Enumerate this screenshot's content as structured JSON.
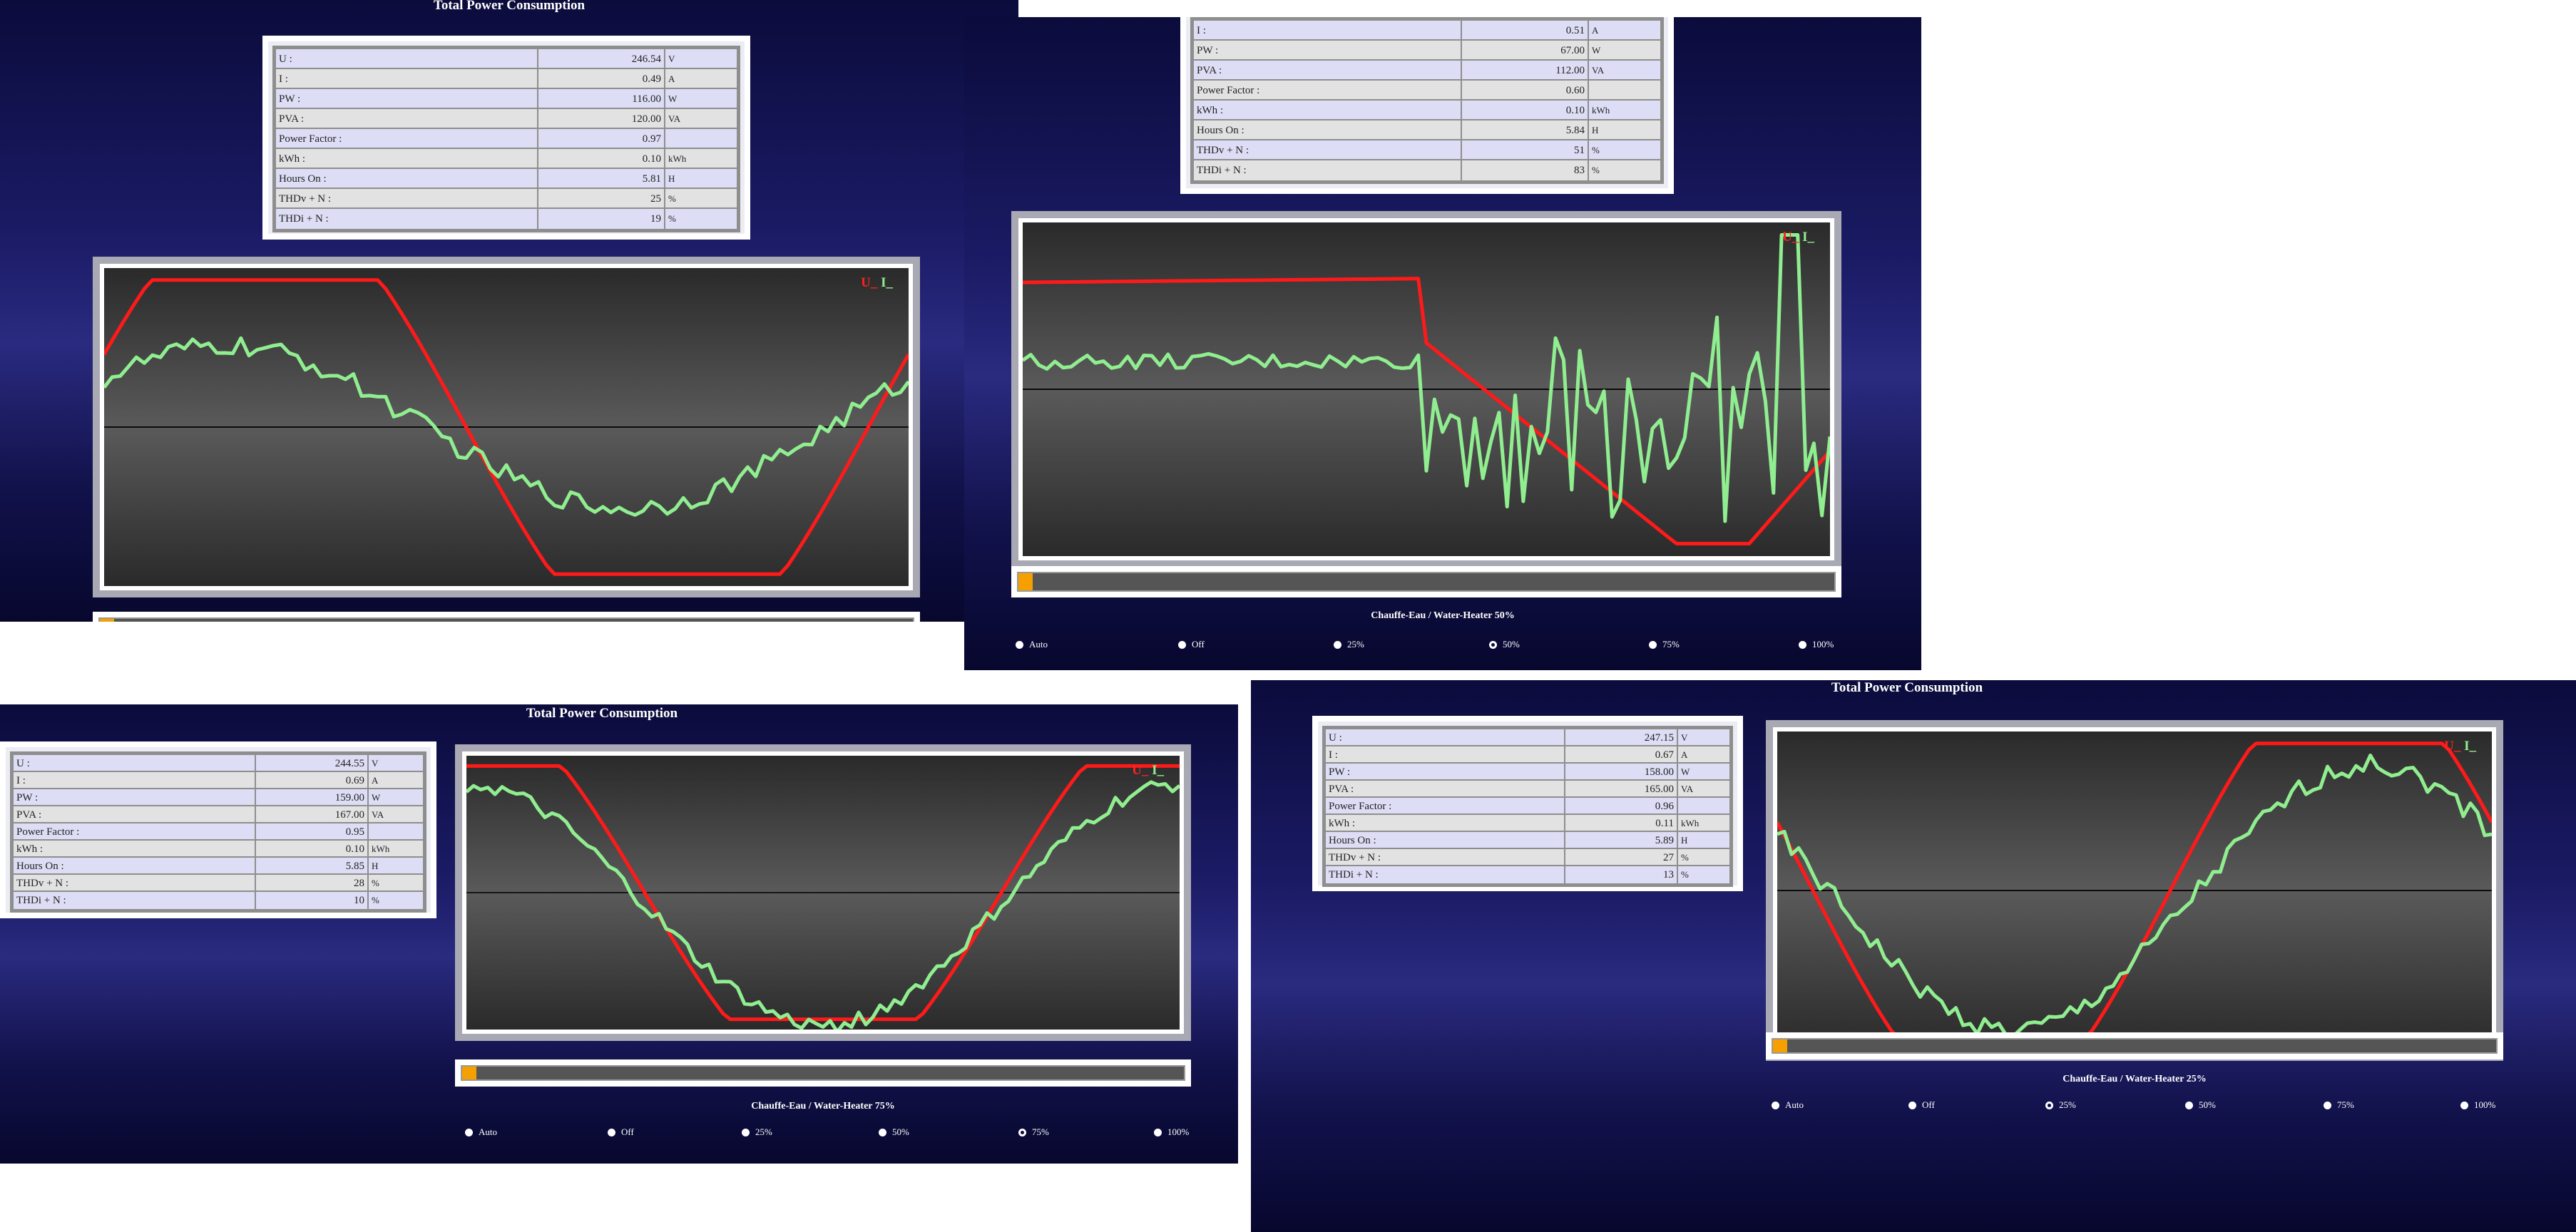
{
  "colors": {
    "voltage": "#ff1a1a",
    "current": "#90ee90",
    "thumb": "#f5a000"
  },
  "screens": [
    {
      "title": "Total Power Consumption",
      "legend": {
        "u": "U",
        "i": "I",
        "sep": "_"
      },
      "measurements": [
        {
          "label": "U :",
          "value": "246.54",
          "unit": "V"
        },
        {
          "label": "I :",
          "value": "0.49",
          "unit": "A"
        },
        {
          "label": "PW :",
          "value": "116.00",
          "unit": "W"
        },
        {
          "label": "PVA :",
          "value": "120.00",
          "unit": "VA"
        },
        {
          "label": "Power Factor :",
          "value": "0.97",
          "unit": ""
        },
        {
          "label": "kWh :",
          "value": "0.10",
          "unit": "kWh"
        },
        {
          "label": "Hours On :",
          "value": "5.81",
          "unit": "H"
        },
        {
          "label": "THDv + N :",
          "value": "25",
          "unit": "%"
        },
        {
          "label": "THDi + N :",
          "value": "19",
          "unit": "%"
        }
      ]
    },
    {
      "legend": {
        "u": "U",
        "i": "I",
        "sep": "_"
      },
      "measurements": [
        {
          "label": "I :",
          "value": "0.51",
          "unit": "A"
        },
        {
          "label": "PW :",
          "value": "67.00",
          "unit": "W"
        },
        {
          "label": "PVA :",
          "value": "112.00",
          "unit": "VA"
        },
        {
          "label": "Power Factor :",
          "value": "0.60",
          "unit": ""
        },
        {
          "label": "kWh :",
          "value": "0.10",
          "unit": "kWh"
        },
        {
          "label": "Hours On :",
          "value": "5.84",
          "unit": "H"
        },
        {
          "label": "THDv + N :",
          "value": "51",
          "unit": "%"
        },
        {
          "label": "THDi + N :",
          "value": "83",
          "unit": "%"
        }
      ],
      "mode_title": "Chauffe-Eau / Water-Heater 50%",
      "options": [
        "Auto",
        "Off",
        "25%",
        "50%",
        "75%",
        "100%"
      ],
      "selected": "50%"
    },
    {
      "title": "Total Power Consumption",
      "legend": {
        "u": "U",
        "i": "I",
        "sep": "_"
      },
      "measurements": [
        {
          "label": "U :",
          "value": "244.55",
          "unit": "V"
        },
        {
          "label": "I :",
          "value": "0.69",
          "unit": "A"
        },
        {
          "label": "PW :",
          "value": "159.00",
          "unit": "W"
        },
        {
          "label": "PVA :",
          "value": "167.00",
          "unit": "VA"
        },
        {
          "label": "Power Factor :",
          "value": "0.95",
          "unit": ""
        },
        {
          "label": "kWh :",
          "value": "0.10",
          "unit": "kWh"
        },
        {
          "label": "Hours On :",
          "value": "5.85",
          "unit": "H"
        },
        {
          "label": "THDv + N :",
          "value": "28",
          "unit": "%"
        },
        {
          "label": "THDi + N :",
          "value": "10",
          "unit": "%"
        }
      ],
      "mode_title": "Chauffe-Eau / Water-Heater 75%",
      "options": [
        "Auto",
        "Off",
        "25%",
        "50%",
        "75%",
        "100%"
      ],
      "selected": "75%"
    },
    {
      "title": "Total Power Consumption",
      "legend": {
        "u": "U",
        "i": "I",
        "sep": "_"
      },
      "measurements": [
        {
          "label": "U :",
          "value": "247.15",
          "unit": "V"
        },
        {
          "label": "I :",
          "value": "0.67",
          "unit": "A"
        },
        {
          "label": "PW :",
          "value": "158.00",
          "unit": "W"
        },
        {
          "label": "PVA :",
          "value": "165.00",
          "unit": "VA"
        },
        {
          "label": "Power Factor :",
          "value": "0.96",
          "unit": ""
        },
        {
          "label": "kWh :",
          "value": "0.11",
          "unit": "kWh"
        },
        {
          "label": "Hours On :",
          "value": "5.89",
          "unit": "H"
        },
        {
          "label": "THDv + N :",
          "value": "27",
          "unit": "%"
        },
        {
          "label": "THDi + N :",
          "value": "13",
          "unit": "%"
        }
      ],
      "mode_title": "Chauffe-Eau / Water-Heater 25%",
      "options": [
        "Auto",
        "Off",
        "25%",
        "50%",
        "75%",
        "100%"
      ],
      "selected": "25%"
    }
  ]
}
